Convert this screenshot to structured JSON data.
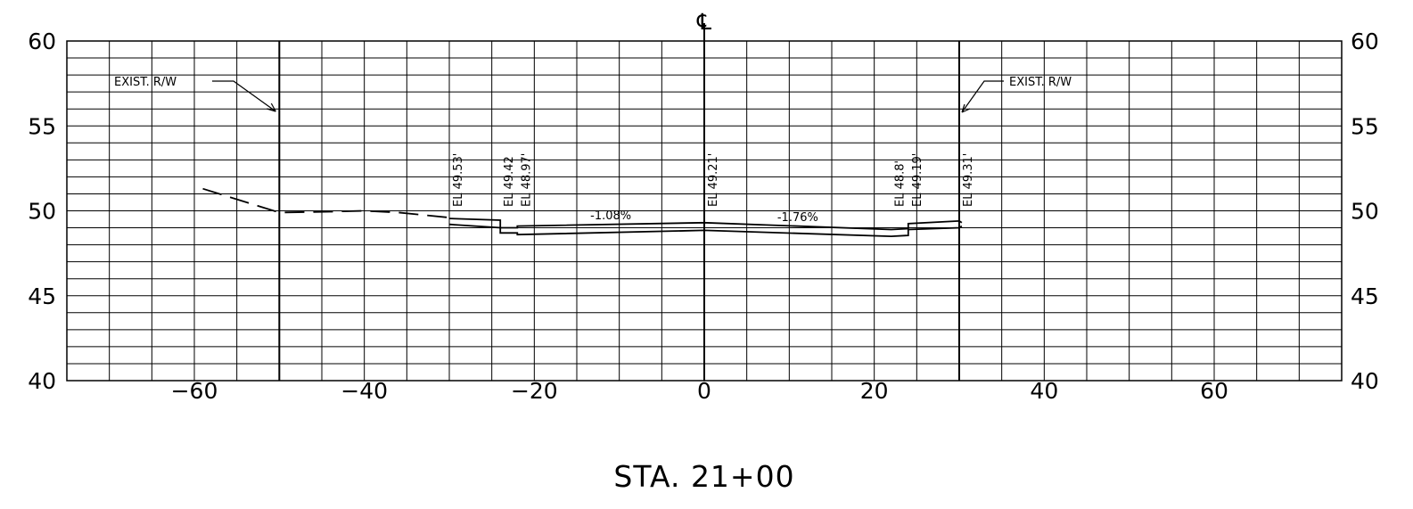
{
  "x_axis": {
    "min": -75,
    "max": 75,
    "tick_labels": [
      "−60",
      "−40",
      "−20",
      "0",
      "20",
      "40",
      "60"
    ],
    "tick_values": [
      -60,
      -40,
      -20,
      0,
      20,
      40,
      60
    ],
    "minor_step": 5
  },
  "y_axis": {
    "min": 40,
    "max": 60,
    "tick_labels": [
      "40",
      "45",
      "50",
      "55",
      "60"
    ],
    "tick_values": [
      40,
      45,
      50,
      55,
      60
    ],
    "minor_step": 1
  },
  "centerline_symbol": "℄",
  "right_of_way_left": {
    "label": "EXIST. R/W",
    "offset": -50
  },
  "right_of_way_right": {
    "label": "EXIST. R/W",
    "offset": 30
  },
  "elevations": [
    {
      "label": "EL 49.53'",
      "offset": -30
    },
    {
      "label": "EL 49.42",
      "offset": -24
    },
    {
      "label": "EL 48.97'",
      "offset": -22
    },
    {
      "label": "EL 49.21'",
      "offset": 0
    },
    {
      "label": "EL 48.8'",
      "offset": 22
    },
    {
      "label": "EL 49.19'",
      "offset": 24
    },
    {
      "label": "EL 49.31'",
      "offset": 30
    }
  ],
  "slopes": [
    {
      "label": "-1.08%",
      "offset": -11,
      "elev": 49.35
    },
    {
      "label": "-1.76%",
      "offset": 11,
      "elev": 49.25
    }
  ],
  "existing_ground": [
    [
      -59,
      51.3
    ],
    [
      -50,
      49.9
    ],
    [
      -44,
      49.95
    ],
    [
      -40,
      50.0
    ],
    [
      -36,
      49.9
    ],
    [
      -30,
      49.6
    ]
  ],
  "proposed_top": [
    [
      -30,
      49.55
    ],
    [
      -24,
      49.45
    ],
    [
      -24,
      49.0
    ],
    [
      -22,
      49.0
    ],
    [
      -22,
      49.1
    ],
    [
      0,
      49.3
    ],
    [
      22,
      48.9
    ],
    [
      24,
      48.95
    ],
    [
      24,
      49.25
    ],
    [
      30,
      49.4
    ],
    [
      30.3,
      49.3
    ]
  ],
  "proposed_bottom": [
    [
      -30,
      49.2
    ],
    [
      -24,
      49.0
    ],
    [
      -24,
      48.7
    ],
    [
      -22,
      48.7
    ],
    [
      -22,
      48.6
    ],
    [
      0,
      48.85
    ],
    [
      22,
      48.5
    ],
    [
      24,
      48.55
    ],
    [
      24,
      48.9
    ],
    [
      30,
      49.0
    ],
    [
      30.3,
      49.1
    ]
  ],
  "station": "STA. 21+00"
}
